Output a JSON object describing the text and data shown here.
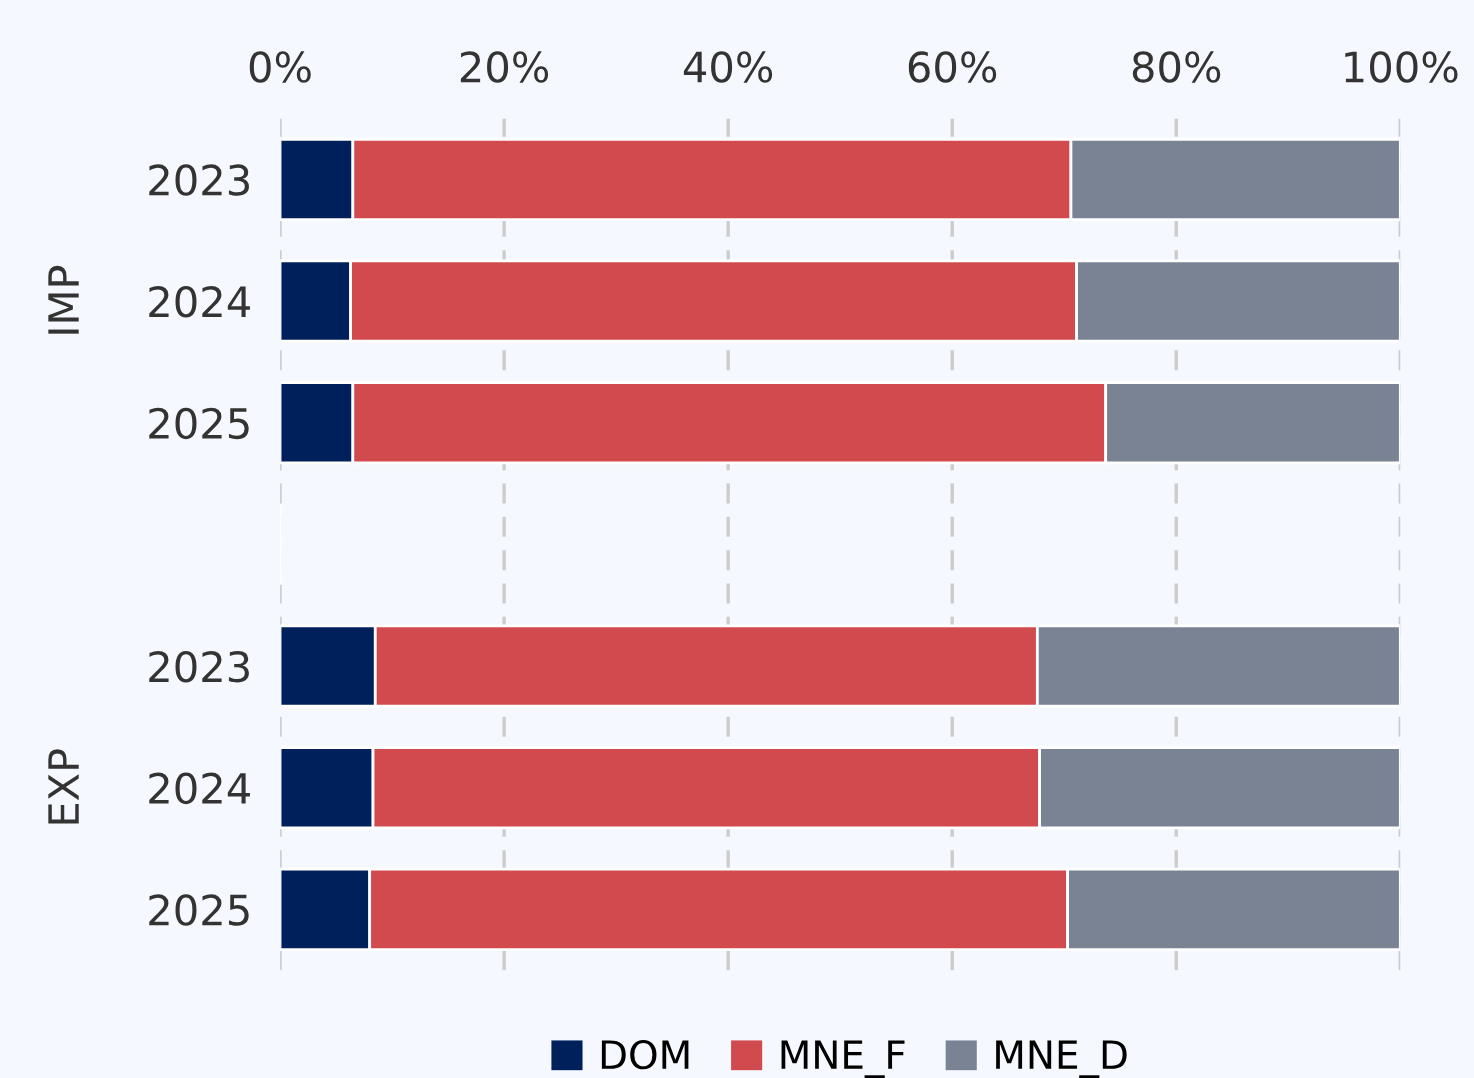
{
  "chart_data": {
    "type": "bar",
    "orientation": "horizontal",
    "stacked": true,
    "categories": [
      "2023",
      "2024",
      "2025",
      null,
      "2023",
      "2024",
      "2025"
    ],
    "series": [
      {
        "name": "DOM",
        "color": "#00205b",
        "values": [
          6.5,
          6.3,
          6.5,
          null,
          8.5,
          8.3,
          8.0
        ]
      },
      {
        "name": "MNE_F",
        "color": "#d04a4e",
        "values": [
          64.1,
          64.8,
          67.2,
          null,
          59.1,
          59.5,
          62.3
        ]
      },
      {
        "name": "MNE_D",
        "color": "#7a8394",
        "values": [
          29.4,
          28.9,
          26.3,
          null,
          32.4,
          32.2,
          29.7
        ]
      }
    ],
    "annotations": [
      "IMP",
      "EXP"
    ],
    "xlim": [
      0,
      100
    ],
    "xticks": [
      {
        "value": 0,
        "label": "0%"
      },
      {
        "value": 20,
        "label": "20%"
      },
      {
        "value": 40,
        "label": "40%"
      },
      {
        "value": 60,
        "label": "60%"
      },
      {
        "value": 80,
        "label": "80%"
      },
      {
        "value": 100,
        "label": "100%"
      }
    ],
    "grid": "x",
    "legend": "bottom"
  }
}
